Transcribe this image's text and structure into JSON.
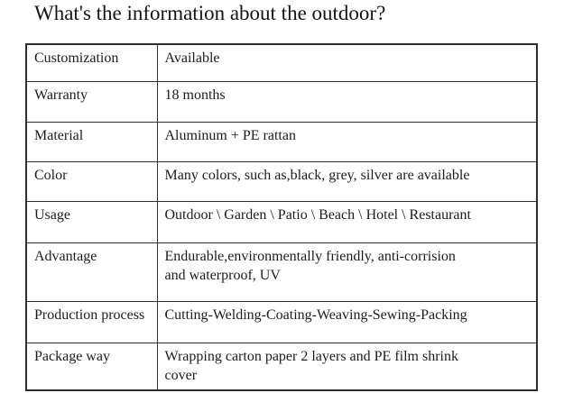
{
  "title": "What's the information about the outdoor?",
  "colors": {
    "background": "#ffffff",
    "text": "#1c1c1c",
    "border": "#2e2e2e"
  },
  "table": {
    "rows": [
      {
        "label": "Customization",
        "value": "Available"
      },
      {
        "label": "Warranty",
        "value": "18 months"
      },
      {
        "label": "Material",
        "value": "Aluminum + PE rattan"
      },
      {
        "label": "Color",
        "value": "Many colors, such as,black, grey, silver are available"
      },
      {
        "label": "Usage",
        "value": "Outdoor \\ Garden \\ Patio \\ Beach \\ Hotel \\ Restaurant"
      },
      {
        "label": "Advantage",
        "value": "Endurable,environmentally friendly, anti-corrision\nand waterproof, UV"
      },
      {
        "label": "Production process",
        "value": "Cutting-Welding-Coating-Weaving-Sewing-Packing"
      },
      {
        "label": "Package way",
        "value": "Wrapping carton paper 2 layers and PE film shrink\ncover"
      }
    ]
  }
}
